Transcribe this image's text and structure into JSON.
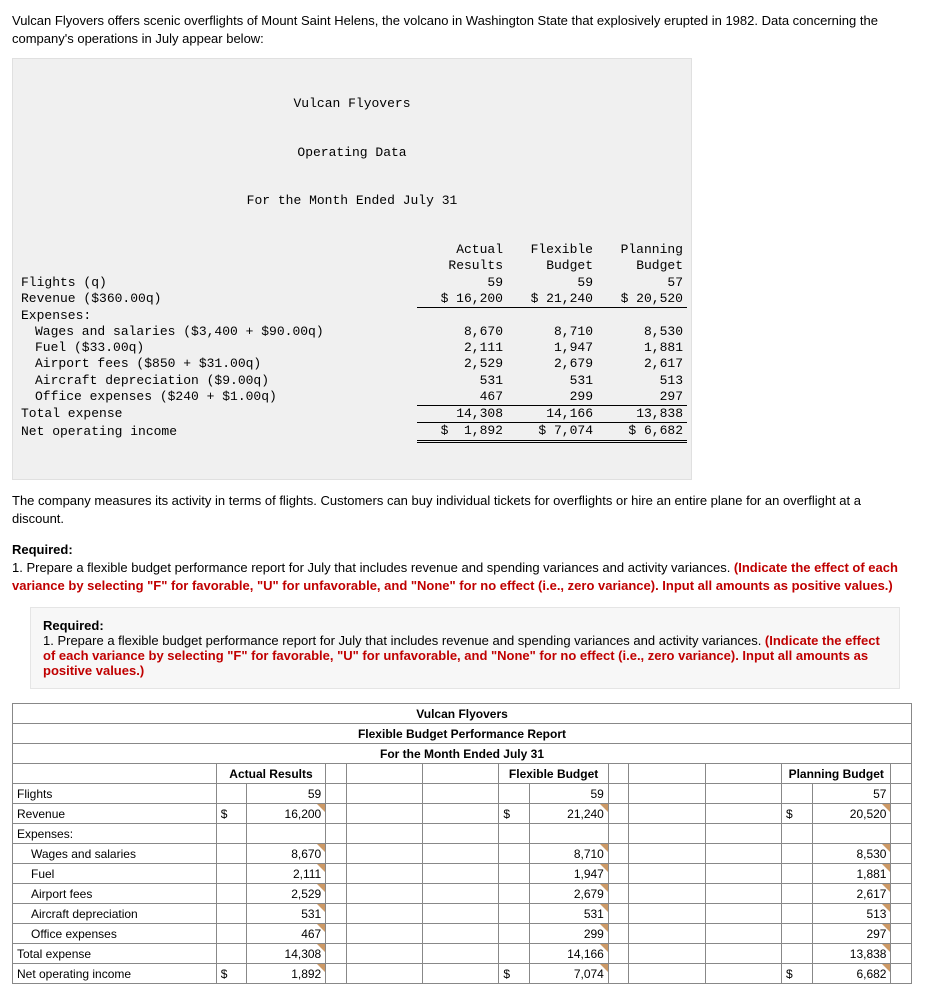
{
  "intro": "Vulcan Flyovers offers scenic overflights of Mount Saint Helens, the volcano in Washington State that explosively erupted in 1982. Data concerning the company's operations in July appear below:",
  "panel": {
    "l1": "Vulcan Flyovers",
    "l2": "Operating Data",
    "l3": "For the Month Ended July 31",
    "col1": "Actual",
    "col1b": "Results",
    "col2": "Flexible",
    "col2b": "Budget",
    "col3": "Planning",
    "col3b": "Budget",
    "rows": {
      "flights": {
        "label": "Flights (q)",
        "a": "59",
        "f": "59",
        "p": "57"
      },
      "revenue": {
        "label": "Revenue ($360.00q)",
        "a": "$ 16,200",
        "f": "$ 21,240",
        "p": "$ 20,520"
      },
      "exp": "Expenses:",
      "wages": {
        "label": "Wages and salaries ($3,400 + $90.00q)",
        "a": "8,670",
        "f": "8,710",
        "p": "8,530"
      },
      "fuel": {
        "label": "Fuel ($33.00q)",
        "a": "2,111",
        "f": "1,947",
        "p": "1,881"
      },
      "airport": {
        "label": "Airport fees ($850 + $31.00q)",
        "a": "2,529",
        "f": "2,679",
        "p": "2,617"
      },
      "dep": {
        "label": "Aircraft depreciation ($9.00q)",
        "a": "531",
        "f": "531",
        "p": "513"
      },
      "office": {
        "label": "Office expenses ($240 + $1.00q)",
        "a": "467",
        "f": "299",
        "p": "297"
      },
      "total": {
        "label": "Total expense",
        "a": "14,308",
        "f": "14,166",
        "p": "13,838"
      },
      "net": {
        "label": "Net operating income",
        "a": "$  1,892",
        "f": "$ 7,074",
        "p": "$ 6,682"
      }
    }
  },
  "para2": "The company measures its activity in terms of flights. Customers can buy individual tickets for overflights or hire an entire plane for an overflight at a discount.",
  "required_label": "Required:",
  "req_text_plain": "1. Prepare a flexible budget performance report for July that includes revenue and spending variances and activity variances. ",
  "req_text_red": "(Indicate the effect of each variance by selecting \"F\" for favorable, \"U\" for unfavorable, and \"None\" for no effect (i.e., zero variance). Input all amounts as positive values.)",
  "report": {
    "title1": "Vulcan Flyovers",
    "title2": "Flexible Budget Performance Report",
    "title3": "For the Month Ended July 31",
    "h_actual": "Actual Results",
    "h_flex": "Flexible Budget",
    "h_plan": "Planning Budget",
    "rows": {
      "flights": {
        "label": "Flights",
        "a": "59",
        "f": "59",
        "p": "57"
      },
      "revenue": {
        "label": "Revenue",
        "as": "$",
        "a": "16,200",
        "fs": "$",
        "f": "21,240",
        "ps": "$",
        "p": "20,520"
      },
      "exp": {
        "label": "Expenses:"
      },
      "wages": {
        "label": "Wages and salaries",
        "a": "8,670",
        "f": "8,710",
        "p": "8,530"
      },
      "fuel": {
        "label": "Fuel",
        "a": "2,111",
        "f": "1,947",
        "p": "1,881"
      },
      "airport": {
        "label": "Airport fees",
        "a": "2,529",
        "f": "2,679",
        "p": "2,617"
      },
      "dep": {
        "label": "Aircraft depreciation",
        "a": "531",
        "f": "531",
        "p": "513"
      },
      "office": {
        "label": "Office expenses",
        "a": "467",
        "f": "299",
        "p": "297"
      },
      "total": {
        "label": "Total expense",
        "a": "14,308",
        "f": "14,166",
        "p": "13,838"
      },
      "net": {
        "label": "Net operating income",
        "as": "$",
        "a": "1,892",
        "fs": "$",
        "f": "7,074",
        "ps": "$",
        "p": "6,682"
      }
    }
  }
}
